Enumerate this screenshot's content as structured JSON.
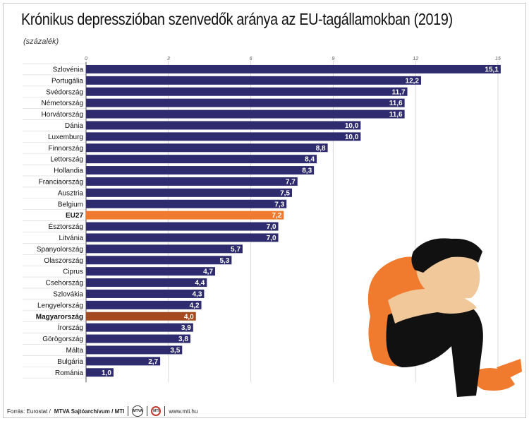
{
  "title": "Krónikus depresszióban szenvedők aránya az EU-tagállamokban (2019)",
  "subtitle": "(százalék)",
  "footer": {
    "source_prefix": "Forrás: Eurostat /",
    "source_bold": "MTVA Sajtóarchívum / MTI",
    "logo1": "MTVA",
    "logo2": "MTI",
    "url": "www.mti.hu"
  },
  "colors": {
    "bar": "#2e2c6e",
    "eu_bar": "#f07a2e",
    "hu_bar": "#a54a1f",
    "grid": "#d9d9d9"
  },
  "chart_data": {
    "type": "bar",
    "orientation": "horizontal",
    "title": "Krónikus depresszióban szenvedők aránya az EU-tagállamokban (2019)",
    "subtitle": "(százalék)",
    "xlim": [
      0,
      15
    ],
    "ticks": [
      0,
      3,
      6,
      9,
      12,
      15
    ],
    "grid": true,
    "categories": [
      "Szlovénia",
      "Portugália",
      "Svédország",
      "Németország",
      "Horvátország",
      "Dánia",
      "Luxemburg",
      "Finnország",
      "Lettország",
      "Hollandia",
      "Franciaország",
      "Ausztria",
      "Belgium",
      "EU27",
      "Észtország",
      "Litvánia",
      "Spanyolország",
      "Olaszország",
      "Ciprus",
      "Csehország",
      "Szlovákia",
      "Lengyelország",
      "Magyarország",
      "Írország",
      "Görögország",
      "Málta",
      "Bulgária",
      "Románia"
    ],
    "values": [
      15.1,
      12.2,
      11.7,
      11.6,
      11.6,
      10.0,
      10.0,
      8.8,
      8.4,
      8.3,
      7.7,
      7.5,
      7.3,
      7.2,
      7.0,
      7.0,
      5.7,
      5.3,
      4.7,
      4.4,
      4.3,
      4.2,
      4.0,
      3.9,
      3.8,
      3.5,
      2.7,
      1.0
    ],
    "value_labels": [
      "15,1",
      "12,2",
      "11,7",
      "11,6",
      "11,6",
      "10,0",
      "10,0",
      "8,8",
      "8,4",
      "8,3",
      "7,7",
      "7,5",
      "7,3",
      "7,2",
      "7,0",
      "7,0",
      "5,7",
      "5,3",
      "4,7",
      "4,4",
      "4,3",
      "4,2",
      "4,0",
      "3,9",
      "3,8",
      "3,5",
      "2,7",
      "1,0"
    ],
    "highlight": {
      "EU27": "eu_bar",
      "Magyarország": "hu_bar"
    },
    "bold_labels": [
      "EU27",
      "Magyarország"
    ]
  }
}
